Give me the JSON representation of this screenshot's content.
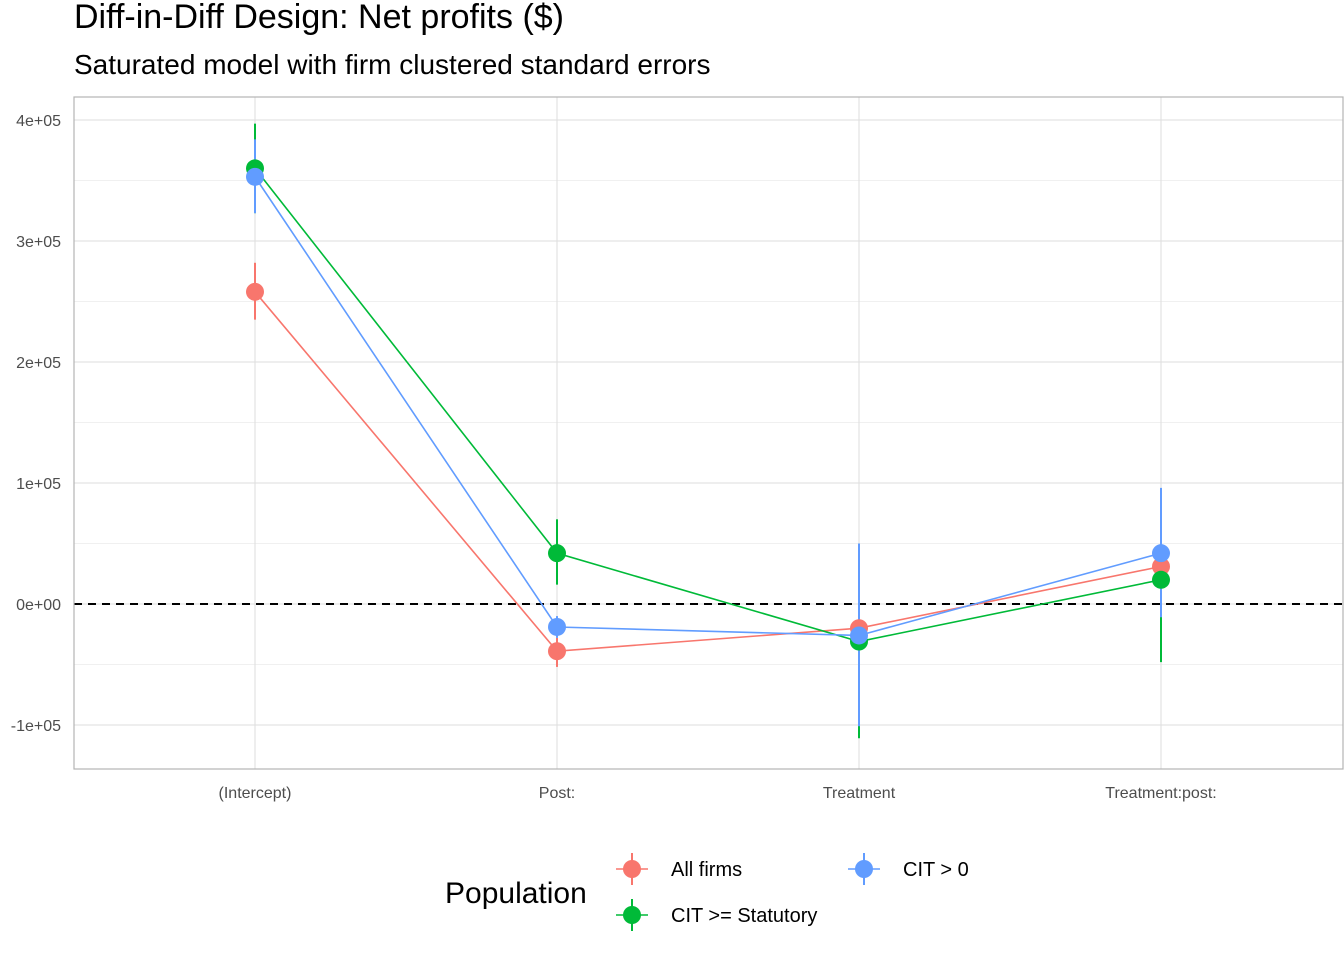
{
  "chart_data": {
    "type": "scatter",
    "title": "Diff-in-Diff Design: Net profits  ($)",
    "subtitle": "Saturated model with firm clustered standard errors",
    "xlabel": "",
    "ylabel": "",
    "categories": [
      "(Intercept)",
      "Post:",
      "Treatment",
      "Treatment:post:"
    ],
    "ylim": [
      -137000,
      400000
    ],
    "yticks": [
      -100000,
      0,
      100000,
      200000,
      300000,
      400000
    ],
    "ytick_labels": [
      "-1e+05",
      "0e+00",
      "1e+05",
      "2e+05",
      "3e+05",
      "4e+05"
    ],
    "reference_line": {
      "y": 0,
      "style": "dashed"
    },
    "grid": true,
    "legend": {
      "title": "Population",
      "position": "bottom"
    },
    "series": [
      {
        "name": "All firms",
        "color": "#F8766D",
        "values": [
          258000,
          -39000,
          -20000,
          31000
        ],
        "lower": [
          235000,
          -52000,
          -30000,
          22000
        ],
        "upper": [
          282000,
          -28000,
          -10000,
          40000
        ]
      },
      {
        "name": "CIT >= Statutory",
        "color": "#00BA38",
        "values": [
          360000,
          42000,
          -31000,
          20000
        ],
        "lower": [
          323000,
          16000,
          -111000,
          -48000
        ],
        "upper": [
          397000,
          70000,
          49000,
          88000
        ]
      },
      {
        "name": "CIT > 0",
        "color": "#619CFF",
        "values": [
          353000,
          -19000,
          -26000,
          42000
        ],
        "lower": [
          323000,
          -28000,
          -101000,
          -11000
        ],
        "upper": [
          384000,
          -10000,
          50000,
          96000
        ]
      }
    ]
  }
}
